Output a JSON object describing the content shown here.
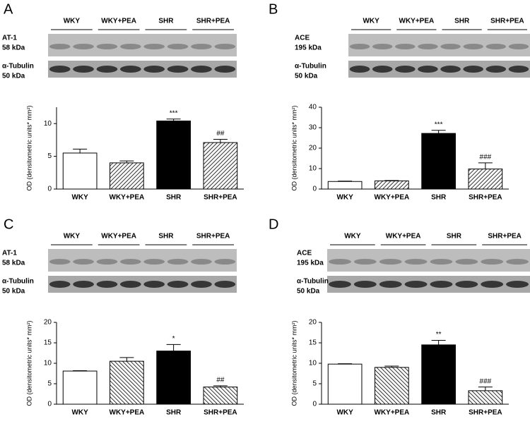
{
  "chart_data": [
    {
      "type": "bar",
      "panel": "A",
      "blot_groups": [
        "WKY",
        "WKY+PEA",
        "SHR",
        "SHR+PEA"
      ],
      "blot_labels": [
        "AT-1",
        "58 kDa",
        "α-Tubulin",
        "50 kDa"
      ],
      "ylabel": "OD (densitometric units* mm²)",
      "categories": [
        "WKY",
        "WKY+PEA",
        "SHR",
        "SHR+PEA"
      ],
      "values": [
        5.5,
        4.0,
        10.4,
        7.1
      ],
      "errors": [
        0.6,
        0.3,
        0.3,
        0.5
      ],
      "annotations": [
        null,
        null,
        "***",
        "##"
      ],
      "bar_styles": [
        "#ffffff",
        "hatch",
        "#000000",
        "hatch"
      ],
      "ylim": [
        0,
        12.5
      ],
      "yticks": [
        0,
        5,
        10
      ]
    },
    {
      "type": "bar",
      "panel": "B",
      "blot_groups": [
        "WKY",
        "WKY+PEA",
        "SHR",
        "SHR+PEA"
      ],
      "blot_labels": [
        "ACE",
        "195 kDa",
        "α-Tubulin",
        "50 kDa"
      ],
      "ylabel": "OD (densitometric units* mm²)",
      "categories": [
        "WKY",
        "WKY+PEA",
        "SHR",
        "SHR+PEA"
      ],
      "values": [
        3.7,
        4.0,
        27.2,
        9.8
      ],
      "errors": [
        0.2,
        0.2,
        1.5,
        3.0
      ],
      "annotations": [
        null,
        null,
        "***",
        "###"
      ],
      "bar_styles": [
        "#ffffff",
        "hatch",
        "#000000",
        "hatch"
      ],
      "ylim": [
        0,
        40
      ],
      "yticks": [
        0,
        10,
        20,
        30,
        40
      ]
    },
    {
      "type": "bar",
      "panel": "C",
      "blot_groups": [
        "WKY",
        "WKY+PEA",
        "SHR",
        "SHR+PEA"
      ],
      "blot_labels": [
        "AT-1",
        "58 kDa",
        "α-Tubulin",
        "50 kDa"
      ],
      "ylabel": "OD (densitometric units* mm²)",
      "categories": [
        "WKY",
        "WKY+PEA",
        "SHR",
        "SHR+PEA"
      ],
      "values": [
        8.1,
        10.5,
        13.0,
        4.2
      ],
      "errors": [
        0.1,
        0.9,
        1.6,
        0.3
      ],
      "annotations": [
        null,
        null,
        "*",
        "##"
      ],
      "bar_styles": [
        "#ffffff",
        "hatch-back",
        "#000000",
        "hatch-back"
      ],
      "ylim": [
        0,
        20
      ],
      "yticks": [
        0,
        5,
        10,
        15,
        20
      ]
    },
    {
      "type": "bar",
      "panel": "D",
      "blot_groups": [
        "WKY",
        "WKY+PEA",
        "SHR",
        "SHR+PEA"
      ],
      "blot_labels": [
        "ACE",
        "195 kDa",
        "α-Tubulin",
        "50 kDa"
      ],
      "ylabel": "OD (densitometric units* mm²)",
      "categories": [
        "WKY",
        "WKY+PEA",
        "SHR",
        "SHR+PEA"
      ],
      "values": [
        9.8,
        9.0,
        14.5,
        3.3
      ],
      "errors": [
        0.1,
        0.3,
        1.1,
        0.9
      ],
      "annotations": [
        null,
        null,
        "**",
        "###"
      ],
      "bar_styles": [
        "#ffffff",
        "hatch-back",
        "#000000",
        "hatch-back"
      ],
      "ylim": [
        0,
        20
      ],
      "yticks": [
        0,
        5,
        10,
        15,
        20
      ]
    }
  ]
}
